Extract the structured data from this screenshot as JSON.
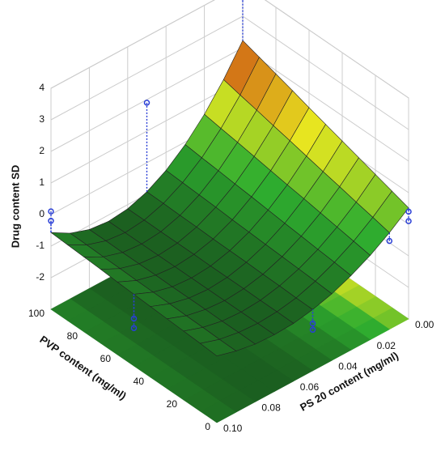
{
  "chart_data": {
    "type": "surface",
    "xlabel": "PS 20 content (mg/ml)",
    "ylabel": "PVP content (mg/ml)",
    "zlabel": "Drug content SD",
    "xlim": [
      0,
      0.1
    ],
    "ylim": [
      0,
      100
    ],
    "zlim": [
      -3,
      4
    ],
    "xticks": [
      {
        "value": 0,
        "label": "0.00"
      },
      {
        "value": 0.02,
        "label": "0.02"
      },
      {
        "value": 0.04,
        "label": "0.04"
      },
      {
        "value": 0.06,
        "label": "0.06"
      },
      {
        "value": 0.08,
        "label": "0.08"
      },
      {
        "value": 0.1,
        "label": "0.10"
      }
    ],
    "yticks": [
      0,
      20,
      40,
      60,
      80,
      100
    ],
    "zticks": [
      -2,
      -1,
      0,
      1,
      2,
      3,
      4
    ],
    "x": [
      0,
      0.01,
      0.02,
      0.03,
      0.04,
      0.05,
      0.06,
      0.07,
      0.08,
      0.09,
      0.1
    ],
    "y": [
      0,
      10,
      20,
      30,
      40,
      50,
      60,
      70,
      80,
      90,
      100
    ],
    "z": [
      [
        0.52,
        0.06,
        -0.33,
        -0.64,
        -0.89,
        -1.06,
        -1.17,
        -1.2,
        -1.17,
        -1.06,
        -0.89
      ],
      [
        0.69,
        0.19,
        -0.24,
        -0.58,
        -0.85,
        -1.05,
        -1.16,
        -1.2,
        -1.16,
        -1.05,
        -0.85
      ],
      [
        0.86,
        0.31,
        -0.15,
        -0.53,
        -0.82,
        -1.03,
        -1.16,
        -1.2,
        -1.16,
        -1.03,
        -0.82
      ],
      [
        1.03,
        0.44,
        -0.06,
        -0.47,
        -0.79,
        -1.02,
        -1.15,
        -1.2,
        -1.15,
        -1.02,
        -0.79
      ],
      [
        1.2,
        0.56,
        0.03,
        -0.42,
        -0.76,
        -1.0,
        -1.15,
        -1.2,
        -1.15,
        -1.0,
        -0.76
      ],
      [
        1.37,
        0.69,
        0.11,
        -0.36,
        -0.73,
        -0.99,
        -1.15,
        -1.2,
        -1.15,
        -0.99,
        -0.73
      ],
      [
        1.54,
        0.82,
        0.2,
        -0.3,
        -0.7,
        -0.98,
        -1.14,
        -1.2,
        -1.14,
        -0.98,
        -0.7
      ],
      [
        1.72,
        0.94,
        0.29,
        -0.25,
        -0.66,
        -0.96,
        -1.14,
        -1.2,
        -1.14,
        -0.96,
        -0.66
      ],
      [
        1.89,
        1.07,
        0.38,
        -0.19,
        -0.63,
        -0.95,
        -1.14,
        -1.2,
        -1.14,
        -0.95,
        -0.63
      ],
      [
        2.06,
        1.19,
        0.46,
        -0.14,
        -0.6,
        -0.93,
        -1.13,
        -1.2,
        -1.13,
        -0.93,
        -0.6
      ],
      [
        2.23,
        1.32,
        0.55,
        -0.08,
        -0.57,
        -0.92,
        -1.13,
        -1.2,
        -1.13,
        -0.92,
        -0.57
      ]
    ],
    "points": {
      "x": [
        0,
        0.05,
        0.1,
        0.1,
        0.1,
        0.1,
        0.05,
        0.05,
        0,
        0,
        0.01
      ],
      "y": [
        100,
        100,
        100,
        100,
        50,
        50,
        0,
        0,
        0,
        0,
        0
      ],
      "z": [
        3.6,
        1.9,
        0.1,
        -0.2,
        -1.5,
        -1.8,
        -1.5,
        -1.7,
        0.4,
        0.1,
        -0.2
      ]
    },
    "colormap": [
      "#1b5e20",
      "#2fae2f",
      "#e8e820",
      "#c0150f"
    ],
    "point_color": "#2a3fd6",
    "grid": true
  }
}
